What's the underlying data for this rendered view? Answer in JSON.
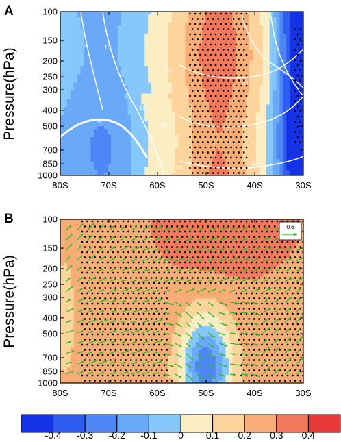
{
  "colors": {
    "levels": [
      "#1432e6",
      "#2f5cf0",
      "#4f86f5",
      "#6aa8f8",
      "#86c8fb",
      "#fbeec4",
      "#fcd49c",
      "#f8ad77",
      "#f3785c",
      "#e83a3a"
    ],
    "contour_line": "#ffffff",
    "vector": "#22bb22",
    "stipple": "#000000"
  },
  "chart_data": [
    {
      "panel": "A",
      "type": "heatmap",
      "ylabel": "Pressure(hPa)",
      "x_ticks": [
        "80S",
        "70S",
        "60S",
        "50S",
        "40S",
        "30S"
      ],
      "y_ticks": [
        "100",
        "150",
        "200",
        "250",
        "300",
        "400",
        "500",
        "700",
        "850",
        "1000"
      ],
      "xlim": [
        -80,
        -30
      ],
      "ylim_hPa": [
        1000,
        100
      ],
      "y_scale": "log",
      "shading": "anomaly",
      "contour_labels": [
        "10",
        "10",
        "0",
        "20",
        "30",
        "20",
        "10",
        "10"
      ],
      "stippling_regions_lat": [
        [
          -53,
          -42
        ],
        [
          -32,
          -30
        ]
      ]
    },
    {
      "panel": "B",
      "type": "heatmap",
      "ylabel": "Pressure(hPa)",
      "x_ticks": [
        "80S",
        "70S",
        "60S",
        "50S",
        "40S",
        "30S"
      ],
      "y_ticks": [
        "100",
        "150",
        "200",
        "250",
        "300",
        "400",
        "500",
        "700",
        "850",
        "1000"
      ],
      "xlim": [
        -80,
        -30
      ],
      "ylim_hPa": [
        1000,
        100
      ],
      "y_scale": "log",
      "shading": "anomaly",
      "vectors": true,
      "reference_vector": "0.6",
      "stippling_regions_lat": [
        [
          -78,
          -30
        ]
      ]
    }
  ],
  "colorbar": {
    "labels": [
      "-0.4",
      "-0.3",
      "-0.2",
      "-0.1",
      "0",
      "0.1",
      "0.2",
      "0.3",
      "0.4"
    ]
  }
}
